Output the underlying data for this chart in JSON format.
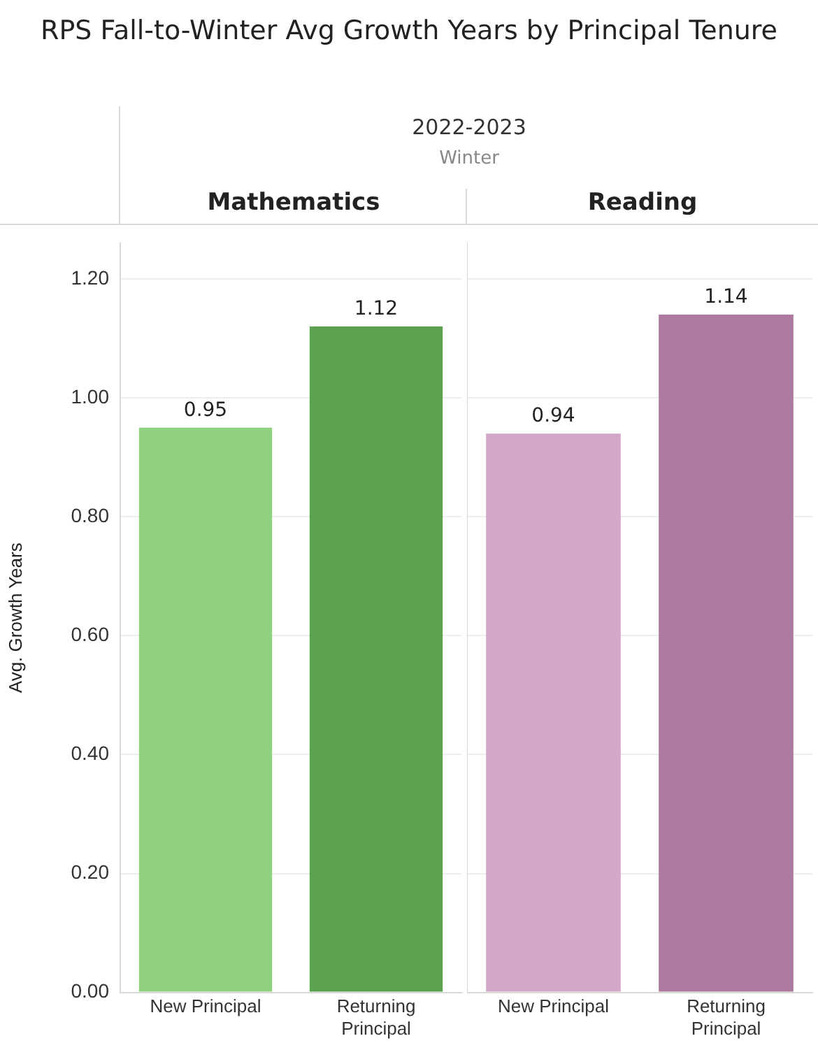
{
  "chart_data": [
    {
      "type": "bar",
      "title": "RPS Fall-to-Winter Avg Growth Years by Principal Tenure",
      "subtitle": "2022-2023",
      "annotations": [
        "Winter",
        "Mathematics"
      ],
      "ylabel": "Avg. Growth Years",
      "categories": [
        "New Principal",
        "Returning Principal"
      ],
      "values": [
        0.95,
        1.12
      ],
      "colors": [
        "#8fd180",
        "#5ba150"
      ],
      "ylim": [
        0,
        1.26
      ],
      "yticks": [
        {
          "value": 0,
          "label": "0.00"
        },
        {
          "value": 0.2,
          "label": "0.20"
        },
        {
          "value": 0.4,
          "label": "0.40"
        },
        {
          "value": 0.6,
          "label": "0.60"
        },
        {
          "value": 0.8,
          "label": "0.80"
        },
        {
          "value": 1,
          "label": "1.00"
        },
        {
          "value": 1.2,
          "label": "1.20"
        }
      ],
      "grid": "y",
      "data_labels": true
    },
    {
      "type": "bar",
      "annotations": [
        "Reading"
      ],
      "categories": [
        "New Principal",
        "Returning Principal"
      ],
      "values": [
        0.94,
        1.14
      ],
      "colors": [
        "#d4a6c8",
        "#ad799f"
      ],
      "ylim": [
        0,
        1.26
      ],
      "yticks": [
        0,
        0.2,
        0.4,
        0.6,
        0.8,
        1,
        1.2
      ],
      "grid": "y",
      "tick_labels": "x",
      "data_labels": true
    }
  ]
}
